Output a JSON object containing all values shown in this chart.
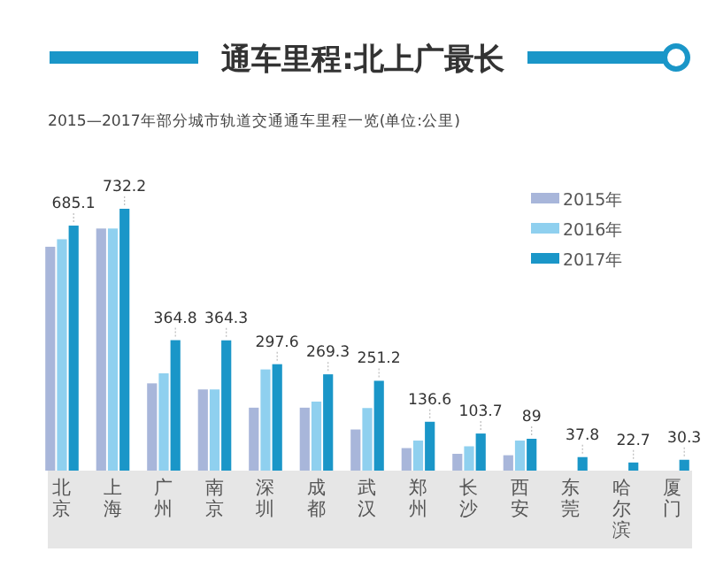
{
  "chart_data": {
    "type": "bar",
    "title": "通车里程:北上广最长",
    "subtitle": "2015—2017年部分城市轨道交通通车里程一览(单位:公里)",
    "categories": [
      "北京",
      "上海",
      "广州",
      "南京",
      "深圳",
      "成都",
      "武汉",
      "郑州",
      "长沙",
      "西安",
      "东莞",
      "哈尔滨",
      "厦门"
    ],
    "series": [
      {
        "name": "2015年",
        "color": "#a8b6da",
        "values": [
          626,
          677,
          244,
          227,
          176,
          176,
          115,
          63,
          47,
          43,
          null,
          null,
          null
        ]
      },
      {
        "name": "2016年",
        "color": "#8fd0ef",
        "values": [
          647,
          677,
          272,
          227,
          283,
          193,
          175,
          84,
          68,
          84,
          null,
          null,
          null
        ]
      },
      {
        "name": "2017年",
        "color": "#1a96c8",
        "values": [
          685.1,
          732.2,
          364.8,
          364.3,
          297.6,
          269.3,
          251.2,
          136.6,
          103.7,
          89,
          37.8,
          22.7,
          30.3
        ],
        "value_labels": [
          "685.1",
          "732.2",
          "364.8",
          "364.3",
          "297.6",
          "269.3",
          "251.2",
          "136.6",
          "103.7",
          "89",
          "37.8",
          "22.7",
          "30.3"
        ]
      }
    ],
    "legend": "top right"
  }
}
